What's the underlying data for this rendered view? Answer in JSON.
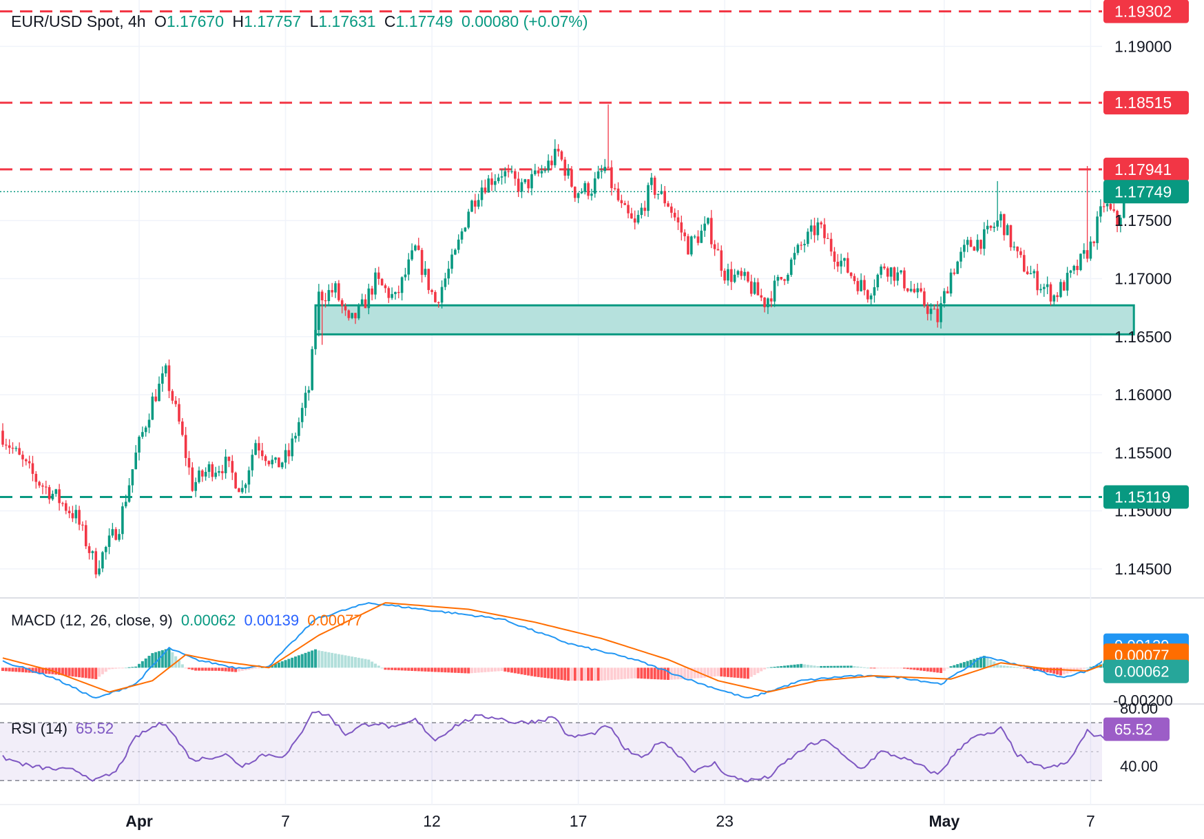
{
  "header": {
    "symbol": "EUR/USD Spot, 4h",
    "open_label": "O",
    "open": "1.17670",
    "high_label": "H",
    "high": "1.17757",
    "low_label": "L",
    "low": "1.17631",
    "close_label": "C",
    "close": "1.17749",
    "change": "0.00080 (+0.07%)"
  },
  "macd_legend": {
    "title": "MACD (12, 26, close, 9)",
    "histogram": "0.00062",
    "macd": "0.00139",
    "signal": "0.00077"
  },
  "rsi_legend": {
    "title": "RSI (14)",
    "value": "65.52"
  },
  "colors": {
    "up": "#089981",
    "down": "#f23645",
    "macd_line": "#2196f3",
    "signal_line": "#ff6d00",
    "rsi_line": "#7e57c2",
    "rsi_band": "#7e57c2",
    "zone_fill": "#b2dfdb",
    "zone_border": "#089981",
    "grid": "#f0f3fa",
    "axis_text": "#131722"
  },
  "chart_data": {
    "type": "candlestick",
    "instrument": "EUR/USD Spot",
    "timeframe": "4h",
    "x_tick_labels": [
      "Apr",
      "7",
      "12",
      "17",
      "23",
      "May",
      "7"
    ],
    "price_axis": {
      "ylim": [
        1.1425,
        1.194
      ],
      "tick_labels": [
        "1.19000",
        "1.17500",
        "1.17000",
        "1.16500",
        "1.16000",
        "1.15500",
        "1.15000",
        "1.14500"
      ],
      "tick_values": [
        1.19,
        1.175,
        1.17,
        1.165,
        1.16,
        1.155,
        1.15,
        1.145
      ]
    },
    "horizontal_levels": [
      {
        "value": 1.19302,
        "label": "1.19302",
        "style": "dashed",
        "color": "#f23645"
      },
      {
        "value": 1.18515,
        "label": "1.18515",
        "style": "dashed",
        "color": "#f23645"
      },
      {
        "value": 1.17941,
        "label": "1.17941",
        "style": "dashed",
        "color": "#f23645"
      },
      {
        "value": 1.15119,
        "label": "1.15119",
        "style": "dashed",
        "color": "#089981"
      }
    ],
    "last_price": {
      "value": 1.17749,
      "label": "1.17749",
      "style": "dotted",
      "color": "#089981"
    },
    "support_zone": {
      "from": 1.1652,
      "to": 1.1677,
      "x_start_index": 94,
      "x_end_index": 340
    },
    "bars_per_day": 6,
    "x_ticks": [
      {
        "label": "Apr",
        "index": 41
      },
      {
        "label": "7",
        "index": 85
      },
      {
        "label": "12",
        "index": 129
      },
      {
        "label": "17",
        "index": 173
      },
      {
        "label": "23",
        "index": 217
      },
      {
        "label": "May",
        "index": 283
      },
      {
        "label": "7",
        "index": 327
      }
    ],
    "price_path": [
      {
        "i": 0,
        "v": 1.1565
      },
      {
        "i": 5,
        "v": 1.1545
      },
      {
        "i": 10,
        "v": 1.1527
      },
      {
        "i": 16,
        "v": 1.1512
      },
      {
        "i": 22,
        "v": 1.1495
      },
      {
        "i": 28,
        "v": 1.1452
      },
      {
        "i": 35,
        "v": 1.1488
      },
      {
        "i": 40,
        "v": 1.1548
      },
      {
        "i": 45,
        "v": 1.1595
      },
      {
        "i": 49,
        "v": 1.1618
      },
      {
        "i": 53,
        "v": 1.1575
      },
      {
        "i": 57,
        "v": 1.1522
      },
      {
        "i": 62,
        "v": 1.1536
      },
      {
        "i": 67,
        "v": 1.154
      },
      {
        "i": 72,
        "v": 1.1518
      },
      {
        "i": 76,
        "v": 1.156
      },
      {
        "i": 82,
        "v": 1.1538
      },
      {
        "i": 86,
        "v": 1.1548
      },
      {
        "i": 92,
        "v": 1.1605
      },
      {
        "i": 95,
        "v": 1.1685
      },
      {
        "i": 100,
        "v": 1.169
      },
      {
        "i": 104,
        "v": 1.166
      },
      {
        "i": 108,
        "v": 1.1675
      },
      {
        "i": 112,
        "v": 1.1698
      },
      {
        "i": 118,
        "v": 1.1682
      },
      {
        "i": 124,
        "v": 1.1725
      },
      {
        "i": 130,
        "v": 1.168
      },
      {
        "i": 136,
        "v": 1.172
      },
      {
        "i": 140,
        "v": 1.176
      },
      {
        "i": 144,
        "v": 1.178
      },
      {
        "i": 150,
        "v": 1.1792
      },
      {
        "i": 156,
        "v": 1.1778
      },
      {
        "i": 162,
        "v": 1.1792
      },
      {
        "i": 167,
        "v": 1.1808
      },
      {
        "i": 172,
        "v": 1.1775
      },
      {
        "i": 177,
        "v": 1.1778
      },
      {
        "i": 181,
        "v": 1.1795
      },
      {
        "i": 186,
        "v": 1.176
      },
      {
        "i": 190,
        "v": 1.1745
      },
      {
        "i": 195,
        "v": 1.178
      },
      {
        "i": 200,
        "v": 1.1765
      },
      {
        "i": 206,
        "v": 1.1728
      },
      {
        "i": 212,
        "v": 1.1745
      },
      {
        "i": 217,
        "v": 1.1705
      },
      {
        "i": 223,
        "v": 1.1698
      },
      {
        "i": 229,
        "v": 1.168
      },
      {
        "i": 234,
        "v": 1.17
      },
      {
        "i": 240,
        "v": 1.1728
      },
      {
        "i": 245,
        "v": 1.1745
      },
      {
        "i": 250,
        "v": 1.1722
      },
      {
        "i": 256,
        "v": 1.17
      },
      {
        "i": 260,
        "v": 1.1688
      },
      {
        "i": 265,
        "v": 1.1712
      },
      {
        "i": 270,
        "v": 1.17
      },
      {
        "i": 276,
        "v": 1.1682
      },
      {
        "i": 281,
        "v": 1.1665
      },
      {
        "i": 285,
        "v": 1.1705
      },
      {
        "i": 290,
        "v": 1.1728
      },
      {
        "i": 295,
        "v": 1.1735
      },
      {
        "i": 300,
        "v": 1.1752
      },
      {
        "i": 305,
        "v": 1.1718
      },
      {
        "i": 310,
        "v": 1.17
      },
      {
        "i": 316,
        "v": 1.1685
      },
      {
        "i": 322,
        "v": 1.1705
      },
      {
        "i": 327,
        "v": 1.1728
      },
      {
        "i": 331,
        "v": 1.1765
      },
      {
        "i": 335,
        "v": 1.1748
      },
      {
        "i": 338,
        "v": 1.17749
      }
    ],
    "wick_extremes": [
      {
        "i": 28,
        "low": 1.1442
      },
      {
        "i": 49,
        "high": 1.1627
      },
      {
        "i": 96,
        "low": 1.1643
      },
      {
        "i": 166,
        "high": 1.182
      },
      {
        "i": 182,
        "high": 1.185
      },
      {
        "i": 282,
        "low": 1.1657
      },
      {
        "i": 299,
        "high": 1.1784
      },
      {
        "i": 326,
        "high": 1.1797
      }
    ],
    "macd": {
      "axis_tick_labels": [
        "-0.00200"
      ],
      "axis_tick_values": [
        -0.002
      ],
      "last": {
        "macd": 0.00139,
        "signal": 0.00077,
        "histogram": 0.00062
      },
      "macd_path": [
        {
          "i": 0,
          "v": 0.0004
        },
        {
          "i": 15,
          "v": -0.0006
        },
        {
          "i": 28,
          "v": -0.0019
        },
        {
          "i": 40,
          "v": -0.001
        },
        {
          "i": 50,
          "v": 0.0012
        },
        {
          "i": 58,
          "v": 0.0005
        },
        {
          "i": 70,
          "v": 0.0
        },
        {
          "i": 80,
          "v": 0.0001
        },
        {
          "i": 94,
          "v": 0.003
        },
        {
          "i": 110,
          "v": 0.004
        },
        {
          "i": 130,
          "v": 0.0035
        },
        {
          "i": 150,
          "v": 0.003
        },
        {
          "i": 170,
          "v": 0.0015
        },
        {
          "i": 190,
          "v": 0.0005
        },
        {
          "i": 210,
          "v": -0.001
        },
        {
          "i": 224,
          "v": -0.0019
        },
        {
          "i": 240,
          "v": -0.0008
        },
        {
          "i": 255,
          "v": -0.0005
        },
        {
          "i": 270,
          "v": -0.0006
        },
        {
          "i": 282,
          "v": -0.001
        },
        {
          "i": 295,
          "v": 0.0007
        },
        {
          "i": 305,
          "v": 0.0002
        },
        {
          "i": 318,
          "v": -0.0006
        },
        {
          "i": 326,
          "v": -0.0002
        },
        {
          "i": 338,
          "v": 0.00139
        }
      ],
      "signal_path": [
        {
          "i": 0,
          "v": 0.0006
        },
        {
          "i": 15,
          "v": -0.0002
        },
        {
          "i": 32,
          "v": -0.0015
        },
        {
          "i": 45,
          "v": -0.0008
        },
        {
          "i": 55,
          "v": 0.0008
        },
        {
          "i": 65,
          "v": 0.0004
        },
        {
          "i": 80,
          "v": 0.0
        },
        {
          "i": 95,
          "v": 0.002
        },
        {
          "i": 115,
          "v": 0.004
        },
        {
          "i": 140,
          "v": 0.0036
        },
        {
          "i": 160,
          "v": 0.0028
        },
        {
          "i": 180,
          "v": 0.0018
        },
        {
          "i": 200,
          "v": 0.0005
        },
        {
          "i": 215,
          "v": -0.0008
        },
        {
          "i": 230,
          "v": -0.0015
        },
        {
          "i": 245,
          "v": -0.0008
        },
        {
          "i": 262,
          "v": -0.0005
        },
        {
          "i": 285,
          "v": -0.0007
        },
        {
          "i": 300,
          "v": 0.0003
        },
        {
          "i": 315,
          "v": -0.0001
        },
        {
          "i": 326,
          "v": -0.0002
        },
        {
          "i": 338,
          "v": 0.00077
        }
      ]
    },
    "rsi": {
      "axis_tick_labels": [
        "80.00",
        "40.00"
      ],
      "axis_tick_values": [
        80,
        40
      ],
      "band_upper": 70,
      "band_middle": 50,
      "band_lower": 30,
      "last": 65.52,
      "path": [
        {
          "i": 0,
          "v": 46
        },
        {
          "i": 8,
          "v": 40
        },
        {
          "i": 15,
          "v": 38
        },
        {
          "i": 22,
          "v": 37
        },
        {
          "i": 28,
          "v": 30
        },
        {
          "i": 34,
          "v": 36
        },
        {
          "i": 40,
          "v": 60
        },
        {
          "i": 46,
          "v": 68
        },
        {
          "i": 49,
          "v": 70
        },
        {
          "i": 53,
          "v": 56
        },
        {
          "i": 57,
          "v": 44
        },
        {
          "i": 62,
          "v": 46
        },
        {
          "i": 67,
          "v": 48
        },
        {
          "i": 72,
          "v": 40
        },
        {
          "i": 78,
          "v": 48
        },
        {
          "i": 85,
          "v": 47
        },
        {
          "i": 89,
          "v": 60
        },
        {
          "i": 93,
          "v": 78
        },
        {
          "i": 98,
          "v": 75
        },
        {
          "i": 103,
          "v": 62
        },
        {
          "i": 108,
          "v": 68
        },
        {
          "i": 112,
          "v": 70
        },
        {
          "i": 118,
          "v": 66
        },
        {
          "i": 124,
          "v": 72
        },
        {
          "i": 130,
          "v": 58
        },
        {
          "i": 136,
          "v": 68
        },
        {
          "i": 142,
          "v": 74
        },
        {
          "i": 148,
          "v": 74
        },
        {
          "i": 154,
          "v": 70
        },
        {
          "i": 160,
          "v": 71
        },
        {
          "i": 166,
          "v": 74
        },
        {
          "i": 170,
          "v": 60
        },
        {
          "i": 177,
          "v": 62
        },
        {
          "i": 182,
          "v": 68
        },
        {
          "i": 187,
          "v": 52
        },
        {
          "i": 192,
          "v": 45
        },
        {
          "i": 198,
          "v": 58
        },
        {
          "i": 204,
          "v": 46
        },
        {
          "i": 208,
          "v": 36
        },
        {
          "i": 214,
          "v": 42
        },
        {
          "i": 218,
          "v": 33
        },
        {
          "i": 224,
          "v": 30
        },
        {
          "i": 230,
          "v": 32
        },
        {
          "i": 236,
          "v": 44
        },
        {
          "i": 242,
          "v": 54
        },
        {
          "i": 248,
          "v": 58
        },
        {
          "i": 253,
          "v": 46
        },
        {
          "i": 258,
          "v": 38
        },
        {
          "i": 264,
          "v": 50
        },
        {
          "i": 270,
          "v": 46
        },
        {
          "i": 276,
          "v": 40
        },
        {
          "i": 281,
          "v": 34
        },
        {
          "i": 286,
          "v": 48
        },
        {
          "i": 291,
          "v": 60
        },
        {
          "i": 297,
          "v": 62
        },
        {
          "i": 300,
          "v": 66
        },
        {
          "i": 305,
          "v": 48
        },
        {
          "i": 310,
          "v": 40
        },
        {
          "i": 315,
          "v": 39
        },
        {
          "i": 320,
          "v": 42
        },
        {
          "i": 326,
          "v": 64
        },
        {
          "i": 330,
          "v": 60
        },
        {
          "i": 334,
          "v": 60
        },
        {
          "i": 338,
          "v": 65.52
        }
      ]
    }
  }
}
